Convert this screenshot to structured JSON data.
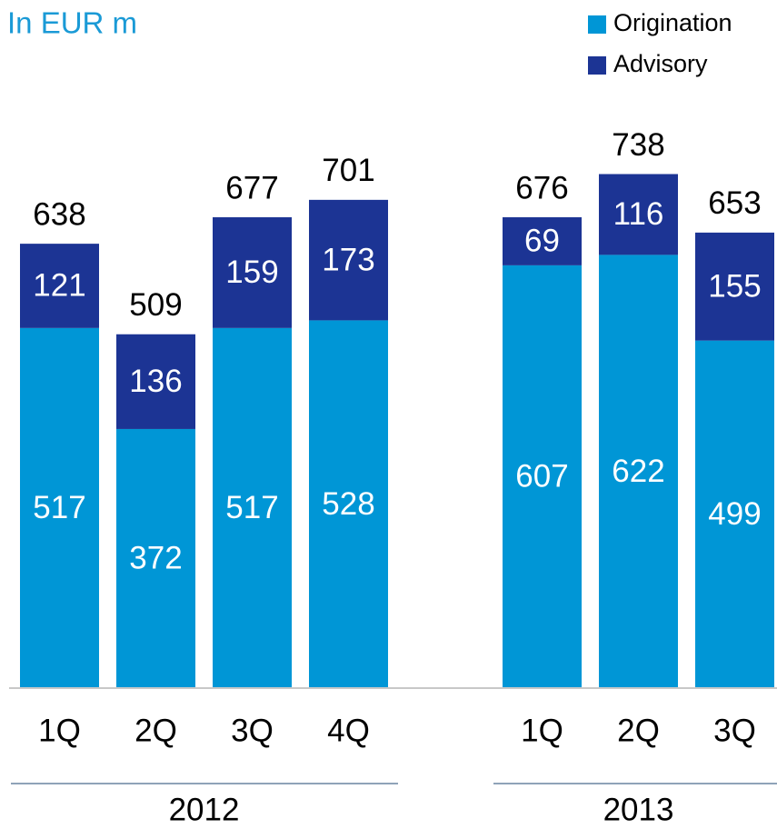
{
  "chart_data": {
    "type": "stacked_bar",
    "title": "In EUR m",
    "groups": [
      {
        "name": "2012",
        "categories": [
          "1Q",
          "2Q",
          "3Q",
          "4Q"
        ]
      },
      {
        "name": "2013",
        "categories": [
          "1Q",
          "2Q",
          "3Q"
        ]
      }
    ],
    "series": [
      {
        "name": "Origination",
        "color": "#0096d6",
        "values": [
          517,
          372,
          517,
          528,
          607,
          622,
          499
        ]
      },
      {
        "name": "Advisory",
        "color": "#1c3494",
        "values": [
          121,
          136,
          159,
          173,
          69,
          116,
          155
        ]
      }
    ],
    "totals": [
      638,
      509,
      677,
      701,
      676,
      738,
      653
    ],
    "ylim": [
      0,
      800
    ]
  }
}
